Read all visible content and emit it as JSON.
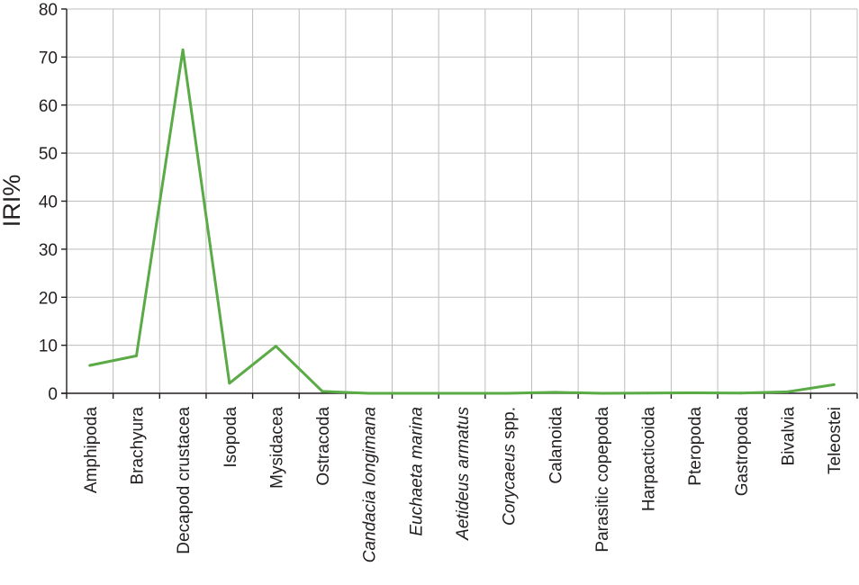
{
  "chart_data": {
    "type": "line",
    "title": "",
    "xlabel": "",
    "ylabel": "IRI%",
    "ylim": [
      0,
      80
    ],
    "yticks": [
      0,
      10,
      20,
      30,
      40,
      50,
      60,
      70,
      80
    ],
    "grid": true,
    "legend": "none",
    "categories": [
      {
        "label": "Amphipoda",
        "italic": false
      },
      {
        "label": "Brachyura",
        "italic": false
      },
      {
        "label": "Decapod crustacea",
        "italic": false
      },
      {
        "label": "Isopoda",
        "italic": false
      },
      {
        "label": "Mysidacea",
        "italic": false
      },
      {
        "label": "Ostracoda",
        "italic": false
      },
      {
        "label": "Candacia longimana",
        "italic": true
      },
      {
        "label": "Euchaeta marina",
        "italic": true
      },
      {
        "label": "Aetideus armatus",
        "italic": true
      },
      {
        "label": "Corycaeus spp.",
        "italic": false,
        "italic_part": "Corycaeus",
        "plain_part": " spp."
      },
      {
        "label": "Calanoida",
        "italic": false
      },
      {
        "label": "Parasitic copepoda",
        "italic": false
      },
      {
        "label": "Harpacticoida",
        "italic": false
      },
      {
        "label": "Pteropoda",
        "italic": false
      },
      {
        "label": "Gastropoda",
        "italic": false
      },
      {
        "label": "Bivalvia",
        "italic": false
      },
      {
        "label": "Teleostei",
        "italic": false
      }
    ],
    "series": [
      {
        "color": "#5aaa46",
        "values": [
          5.8,
          7.8,
          71.5,
          2.1,
          9.8,
          0.4,
          0.0,
          0.0,
          0.0,
          0.0,
          0.2,
          0.0,
          0.05,
          0.1,
          0.05,
          0.3,
          1.8
        ]
      }
    ]
  }
}
